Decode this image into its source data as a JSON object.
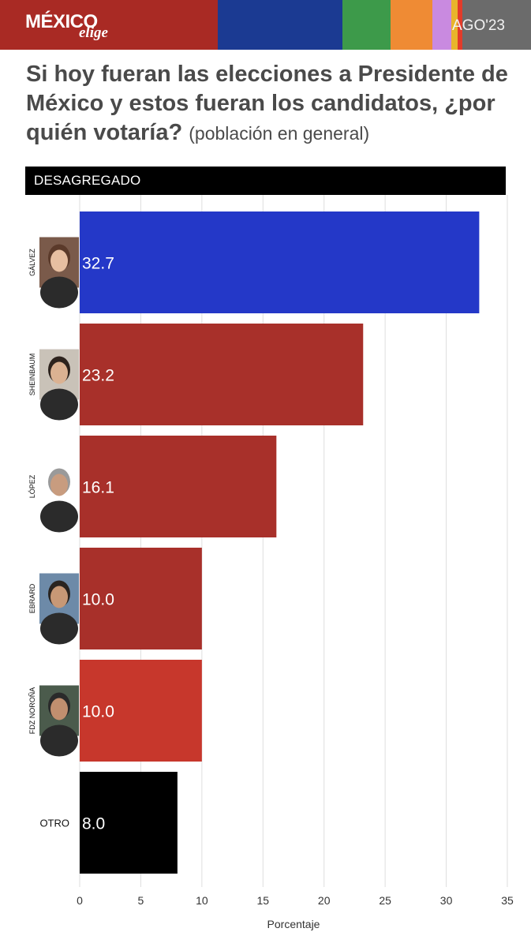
{
  "header": {
    "logo_main": "MÉXICO",
    "logo_sub": "elige",
    "date_label": "AGO'23",
    "stripe_colors": [
      "#a92a24",
      "#1b3a92",
      "#3d9a4a",
      "#ef8b34",
      "#c98ae0",
      "#e8b52c",
      "#e23b2a",
      "#6b6b6b"
    ]
  },
  "headline": {
    "question": "Si hoy fueran las elecciones a Presidente de México y estos fueran los candidatos, ¿por quién votaría?",
    "subtitle": "(población en general)"
  },
  "section": {
    "label": "DESAGREGADO"
  },
  "chart_data": {
    "type": "bar",
    "orientation": "horizontal",
    "categories": [
      "GÁLVEZ",
      "SHEINBAUM",
      "LÓPEZ",
      "EBRARD",
      "FDZ NOROÑA",
      "OTRO"
    ],
    "values": [
      32.7,
      23.2,
      16.1,
      10.0,
      10.0,
      8.0
    ],
    "value_labels": [
      "32.7",
      "23.2",
      "16.1",
      "10.0",
      "10.0",
      "8.0"
    ],
    "colors": [
      "#2438c8",
      "#a8302a",
      "#a8302a",
      "#a8302a",
      "#c7372c",
      "#000000"
    ],
    "photo_icons": [
      "galvez-photo-icon",
      "sheinbaum-photo-icon",
      "lopez-photo-icon",
      "ebrard-photo-icon",
      "noroña-photo-icon",
      null
    ],
    "xlabel": "Porcentaje",
    "ylabel": "",
    "xlim": [
      0,
      35
    ],
    "xticks": [
      0,
      5,
      10,
      15,
      20,
      25,
      30,
      35
    ],
    "grid": true
  }
}
